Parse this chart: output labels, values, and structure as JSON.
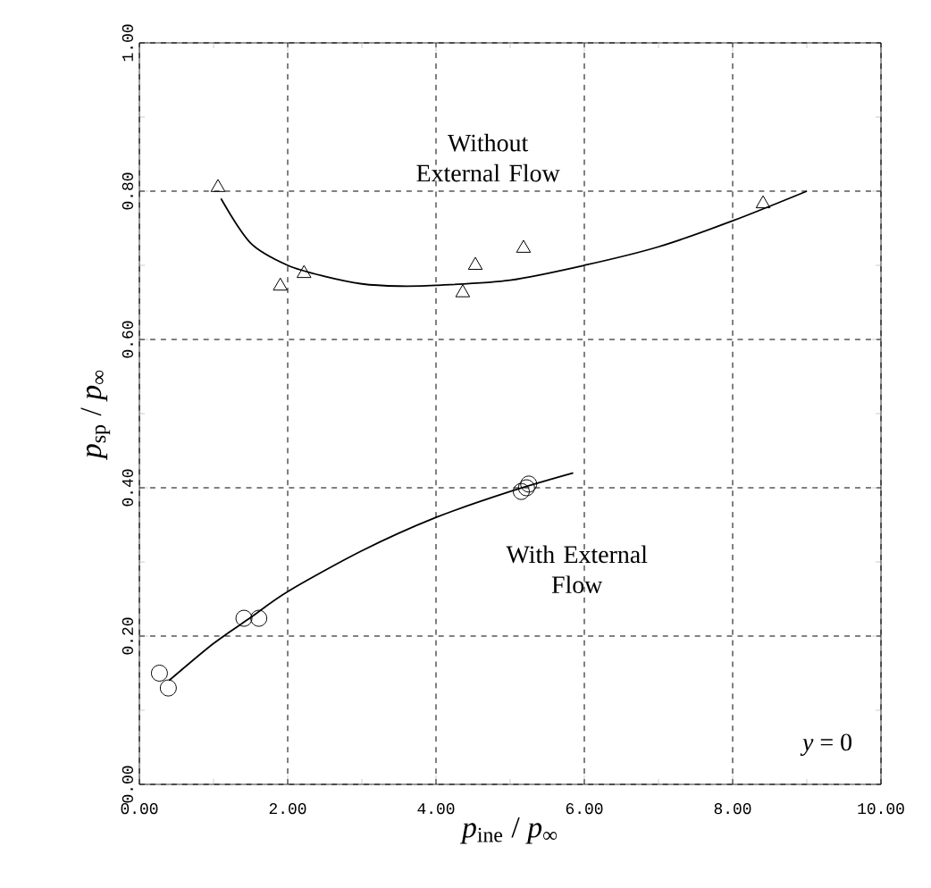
{
  "chart_data": {
    "type": "scatter",
    "xlabel": "*p*$_{ine}$ / *p*$_{∞}$",
    "ylabel": "*p*$_{sp}$ / *p*$_{∞}$",
    "xlim": [
      0,
      10
    ],
    "ylim": [
      0,
      1
    ],
    "xticks": [
      {
        "value": 0,
        "label": "0.00"
      },
      {
        "value": 2,
        "label": "2.00"
      },
      {
        "value": 4,
        "label": "4.00"
      },
      {
        "value": 6,
        "label": "6.00"
      },
      {
        "value": 8,
        "label": "8.00"
      },
      {
        "value": 10,
        "label": "10.00"
      }
    ],
    "yticks": [
      {
        "value": 0,
        "label": "0.00"
      },
      {
        "value": 0.2,
        "label": "0.20"
      },
      {
        "value": 0.4,
        "label": "0.40"
      },
      {
        "value": 0.6,
        "label": "0.60"
      },
      {
        "value": 0.8,
        "label": "0.80"
      },
      {
        "value": 1,
        "label": "1.00"
      }
    ],
    "grid": true,
    "legend": false,
    "series": [
      {
        "name": "Without External Flow",
        "marker": "triangle",
        "color": "#000000",
        "x": [
          1.06,
          1.9,
          2.22,
          4.36,
          4.53,
          5.18,
          8.41
        ],
        "values": [
          0.805,
          0.672,
          0.689,
          0.663,
          0.7,
          0.723,
          0.783
        ]
      },
      {
        "type": "line",
        "marker": "none",
        "color": "#000000",
        "x": [
          1.1,
          1.5,
          2,
          2.5,
          3,
          3.5,
          4,
          5,
          6,
          7,
          8,
          9
        ],
        "values": [
          0.79,
          0.73,
          0.7,
          0.685,
          0.675,
          0.672,
          0.673,
          0.68,
          0.7,
          0.725,
          0.76,
          0.8
        ]
      },
      {
        "name": "With External Flow",
        "marker": "circle",
        "color": "#000000",
        "x": [
          0.27,
          0.39,
          1.41,
          1.61,
          5.15,
          5.22,
          5.25
        ],
        "values": [
          0.15,
          0.13,
          0.224,
          0.224,
          0.395,
          0.4,
          0.405
        ]
      },
      {
        "type": "line",
        "marker": "none",
        "color": "#000000",
        "x": [
          0.4,
          1,
          1.5,
          2,
          3,
          4,
          5,
          5.85
        ],
        "values": [
          0.14,
          0.19,
          0.225,
          0.26,
          0.315,
          0.36,
          0.395,
          0.42
        ]
      }
    ],
    "annotations": [
      "*y* = 0"
    ]
  }
}
